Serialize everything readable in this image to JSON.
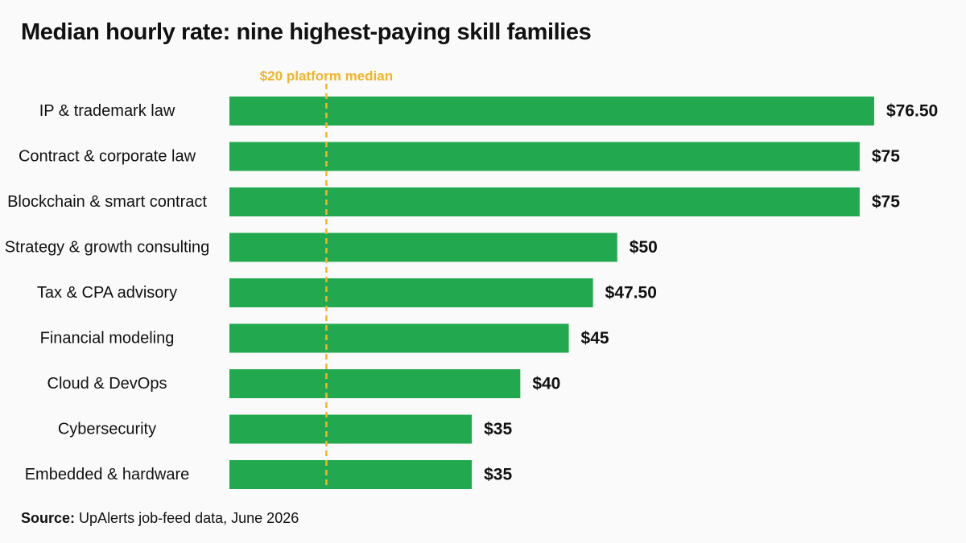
{
  "chart_data": {
    "type": "bar",
    "orientation": "horizontal",
    "title": "Median hourly rate: nine highest-paying skill families",
    "categories": [
      "IP & trademark law",
      "Contract & corporate law",
      "Blockchain & smart contract",
      "Strategy & growth consulting",
      "Tax & CPA advisory",
      "Financial modeling",
      "Cloud & DevOps",
      "Cybersecurity",
      "Embedded & hardware"
    ],
    "values": [
      76.5,
      75,
      75,
      50,
      47.5,
      45,
      40,
      35,
      35
    ],
    "value_labels": [
      "$76.50",
      "$75",
      "$75",
      "$50",
      "$47.50",
      "$45",
      "$40",
      "$35",
      "$35"
    ],
    "xlim": [
      10,
      77.5
    ],
    "grid": false,
    "reference_line": {
      "value": 20,
      "label": "$20 platform median",
      "style": "dashed",
      "color": "#f0b429"
    },
    "bar_color": "#22a94f"
  },
  "source": {
    "prefix": "Source:",
    "text": "UpAlerts job-feed data, June 2026"
  }
}
